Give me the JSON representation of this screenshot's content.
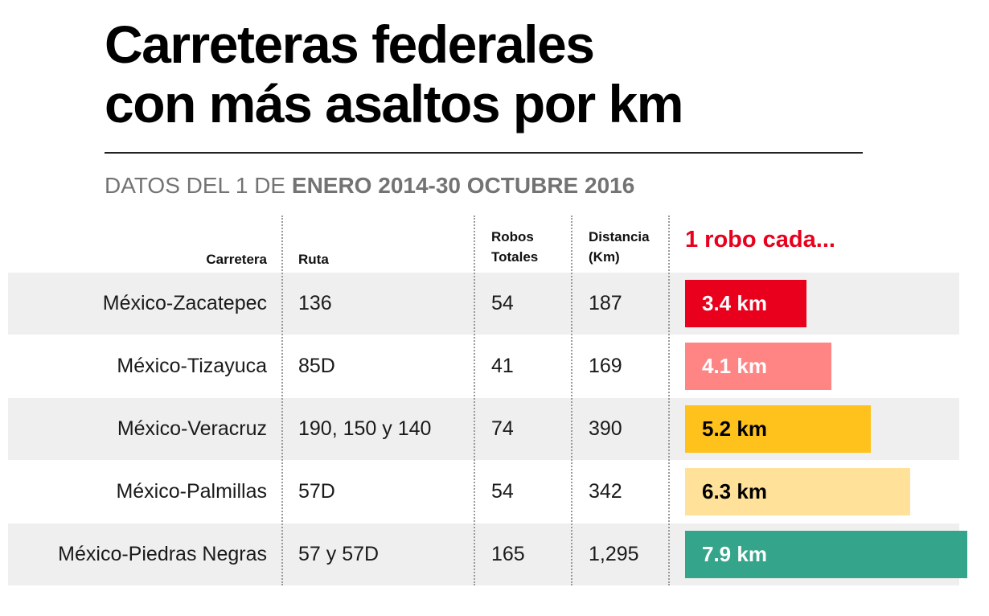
{
  "title": {
    "line1": "Carreteras federales",
    "line2": "con más asaltos por km"
  },
  "subtitle": {
    "normal": "DATOS DEL 1 DE ",
    "bold": "ENERO 2014-30 OCTUBRE 2016"
  },
  "headers": {
    "carretera": "Carretera",
    "ruta": "Ruta",
    "robos_line1": "Robos",
    "robos_line2": "Totales",
    "distancia_line1": "Distancia",
    "distancia_line2": "(Km)",
    "cada": "1 robo cada..."
  },
  "chart_data": {
    "type": "bar",
    "categories": [
      "México-Zacatepec",
      "México-Tizayuca",
      "México-Veracruz",
      "México-Palmillas",
      "México-Piedras Negras"
    ],
    "values": [
      3.4,
      4.1,
      5.2,
      6.3,
      7.9
    ],
    "unit": "km",
    "value_labels": [
      "3.4 km",
      "4.1 km",
      "5.2 km",
      "6.3 km",
      "7.9 km"
    ],
    "xlim": [
      0,
      7.9
    ],
    "rows": [
      {
        "carretera": "México-Zacatepec",
        "ruta": "136",
        "robos": "54",
        "distancia": "187",
        "cada": 3.4,
        "label": "3.4 km",
        "color": "#e8001c",
        "text_color": "#ffffff"
      },
      {
        "carretera": "México-Tizayuca",
        "ruta": "85D",
        "robos": "41",
        "distancia": "169",
        "cada": 4.1,
        "label": "4.1 km",
        "color": "#ff8585",
        "text_color": "#ffffff"
      },
      {
        "carretera": "México-Veracruz",
        "ruta": "190, 150 y 140",
        "robos": "74",
        "distancia": "390",
        "cada": 5.2,
        "label": "5.2 km",
        "color": "#ffc21c",
        "text_color": "#000000"
      },
      {
        "carretera": "México-Palmillas",
        "ruta": "57D",
        "robos": "54",
        "distancia": "342",
        "cada": 6.3,
        "label": "6.3 km",
        "color": "#ffe199",
        "text_color": "#000000"
      },
      {
        "carretera": "México-Piedras Negras",
        "ruta": "57 y 57D",
        "robos": "165",
        "distancia": "1,295",
        "cada": 7.9,
        "label": "7.9 km",
        "color": "#34a58a",
        "text_color": "#ffffff"
      }
    ]
  }
}
